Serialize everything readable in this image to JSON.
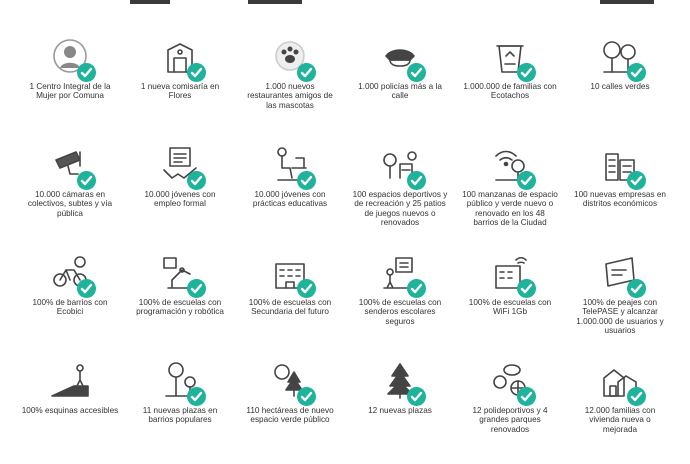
{
  "accent_color": "#1fb39b",
  "items": [
    {
      "label": "1 Centro Integral de la\nMujer por Comuna",
      "icon": "woman-avatar-icon"
    },
    {
      "label": "1 nueva comisaría en\nFlores",
      "icon": "police-station-icon"
    },
    {
      "label": "1.000 nuevos\nrestaurantes amigos de\nlas mascotas",
      "icon": "paw-icon"
    },
    {
      "label": "1.000 policías más a la\ncalle",
      "icon": "police-cap-icon"
    },
    {
      "label": "1.000.000 de familias con\nEcotachos",
      "icon": "recycling-bin-icon"
    },
    {
      "label": "10 calles verdes",
      "icon": "trees-icon"
    },
    {
      "label": "10.000 cámaras en\ncolectivos, subtes y vía\npública",
      "icon": "security-camera-icon"
    },
    {
      "label": "10.000 jóvenes con\nempleo formal",
      "icon": "handshake-contract-icon"
    },
    {
      "label": "10.000 jóvenes con\nprácticas educativas",
      "icon": "person-at-desk-icon"
    },
    {
      "label": "100 espacios deportivos y\nde recreación y 25 patios\nde juegos nuevos o\nrenovados",
      "icon": "park-playground-icon"
    },
    {
      "label": "100 manzanas de espacio\npúblico y verde nuevo o\nrenovado en los 48\nbarrios de la Ciudad",
      "icon": "wifi-tree-icon"
    },
    {
      "label": "100 nuevas empresas en\ndistritos económicos",
      "icon": "buildings-icon"
    },
    {
      "label": "100% de barrios con\nEcobici",
      "icon": "bicycle-icon"
    },
    {
      "label": "100% de escuelas con\nprogramación y robótica",
      "icon": "robotic-arm-icon"
    },
    {
      "label": "100% de escuelas con\nSecundaria del futuro",
      "icon": "school-building-icon"
    },
    {
      "label": "100% de escuelas con\nsenderos escolares\nseguros",
      "icon": "school-path-icon"
    },
    {
      "label": "100% de escuelas con\nWiFi 1Gb",
      "icon": "school-wifi-icon"
    },
    {
      "label": "100% de peajes con\nTelePASE y alcanzar\n1.000.000 de usuarios y\nusuarios",
      "icon": "telepase-tag-icon"
    },
    {
      "label": "100% esquinas accesibles",
      "icon": "ramp-walker-icon"
    },
    {
      "label": "11 nuevas plazas en\nbarrios populares",
      "icon": "plaza-sign-icon"
    },
    {
      "label": "110 hectáreas de nuevo\nespacio verde público",
      "icon": "hectares-tree-icon"
    },
    {
      "label": "12 nuevas plazas",
      "icon": "pine-tree-icon"
    },
    {
      "label": "12 polideportivos y 4\ngrandes parques\nrenovados",
      "icon": "sports-balls-icon"
    },
    {
      "label": "12.000 familias con\nvivienda nueva o\nmejorada",
      "icon": "houses-icon"
    }
  ]
}
